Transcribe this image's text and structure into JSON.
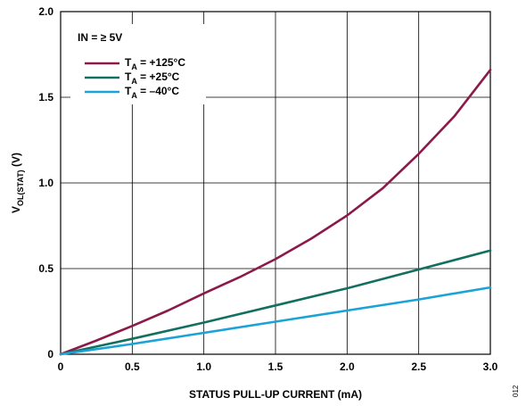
{
  "chart_data": {
    "type": "line",
    "xlabel": "STATUS PULL-UP CURRENT (mA)",
    "ylabel": {
      "main": "V",
      "sub": "OL(STAT)",
      "unit": " (V)"
    },
    "xlim": [
      0,
      3.0
    ],
    "ylim": [
      0,
      2.0
    ],
    "x_ticks": [
      "0",
      "0.5",
      "1.0",
      "1.5",
      "2.0",
      "2.5",
      "3.0"
    ],
    "y_ticks": [
      "0",
      "0.5",
      "1.0",
      "1.5",
      "2.0"
    ],
    "x_tick_values": [
      0,
      0.5,
      1.0,
      1.5,
      2.0,
      2.5,
      3.0
    ],
    "y_tick_values": [
      0,
      0.5,
      1.0,
      1.5,
      2.0
    ],
    "grid": true,
    "legend_position": "top-left",
    "annotation": "IN = ≥ 5V",
    "figure_id": "012",
    "series": [
      {
        "name": {
          "main": "T",
          "sub": "A",
          "rest": " = +125°C"
        },
        "color": "#8b1a4a",
        "x": [
          0,
          0.25,
          0.5,
          0.75,
          1.0,
          1.25,
          1.5,
          1.75,
          2.0,
          2.25,
          2.5,
          2.75,
          3.0
        ],
        "y": [
          0,
          0.08,
          0.165,
          0.255,
          0.355,
          0.45,
          0.555,
          0.675,
          0.81,
          0.97,
          1.17,
          1.39,
          1.66
        ]
      },
      {
        "name": {
          "main": "T",
          "sub": "A",
          "rest": " = +25°C"
        },
        "color": "#127060",
        "x": [
          0,
          0.5,
          1.0,
          1.5,
          2.0,
          2.5,
          3.0
        ],
        "y": [
          0,
          0.09,
          0.185,
          0.285,
          0.385,
          0.495,
          0.605
        ]
      },
      {
        "name": {
          "main": "T",
          "sub": "A",
          "rest": " = –40°C"
        },
        "color": "#1ba3d8",
        "x": [
          0,
          0.5,
          1.0,
          1.5,
          2.0,
          2.5,
          3.0
        ],
        "y": [
          0,
          0.06,
          0.125,
          0.19,
          0.255,
          0.32,
          0.39
        ]
      }
    ]
  }
}
